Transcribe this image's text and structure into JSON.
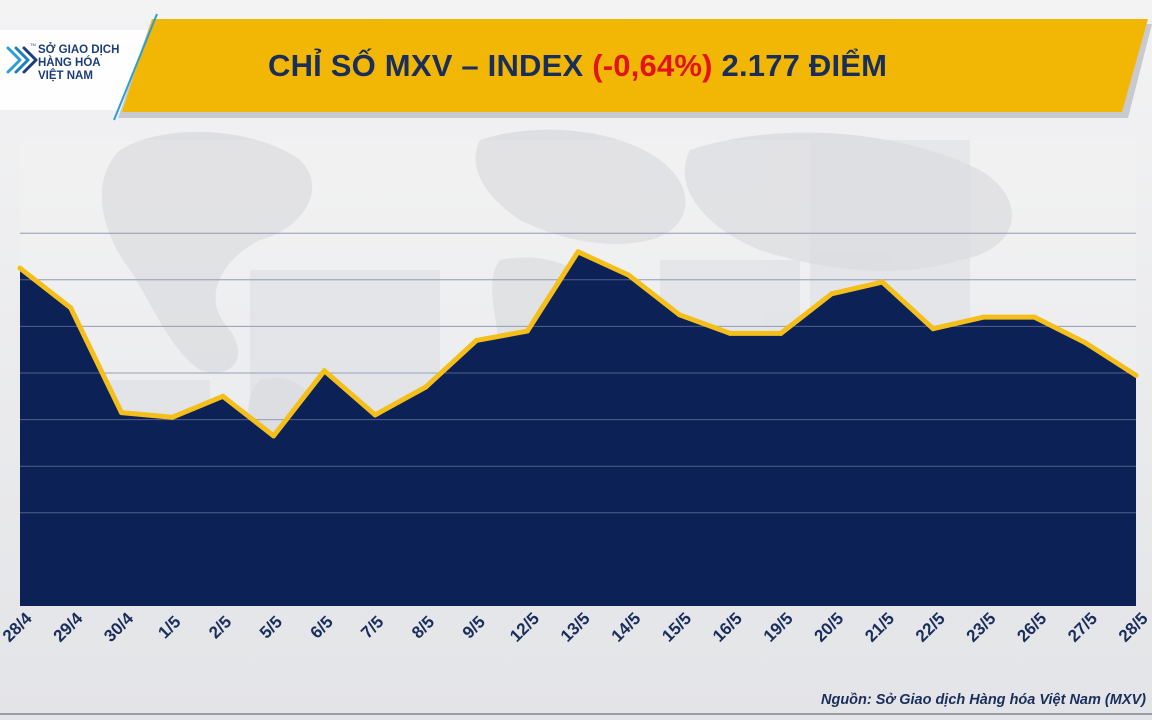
{
  "header": {
    "logo_text": "SỞ GIAO DỊCH\nHÀNG HÓA\nVIỆT NAM",
    "logo_mark": "TM",
    "title_prefix": "CHỈ SỐ MXV – INDEX",
    "title_change": "(-0,64%)",
    "title_suffix": "2.177 ĐIỂM"
  },
  "colors": {
    "banner": "#f2b705",
    "title_text": "#1a2e5c",
    "change_text": "#e3131b",
    "line": "#f5bf1b",
    "area_top": "#a8b1c6",
    "area_bottom": "#0c2257",
    "gridline": "#8a93b0"
  },
  "chart_data": {
    "type": "area",
    "categories": [
      "28/4",
      "29/4",
      "30/4",
      "1/5",
      "2/5",
      "5/5",
      "6/5",
      "7/5",
      "8/5",
      "9/5",
      "12/5",
      "13/5",
      "14/5",
      "15/5",
      "16/5",
      "19/5",
      "20/5",
      "21/5",
      "22/5",
      "23/5",
      "26/5",
      "27/5",
      "28/5"
    ],
    "values": [
      62.5,
      54,
      31.5,
      30.5,
      35,
      26.5,
      40.5,
      31,
      37,
      47,
      49,
      66,
      61,
      52.5,
      48.5,
      48.5,
      57,
      59.5,
      49.5,
      52,
      52,
      46.5,
      39.5
    ],
    "ylim": [
      -10,
      90
    ],
    "gridlines": [
      10,
      20,
      30,
      40,
      50,
      60,
      70
    ],
    "yaxis_labels_shown": false,
    "xlabel": "",
    "ylabel": "",
    "title": "CHỈ SỐ MXV – INDEX (-0,64%) 2.177 ĐIỂM"
  },
  "footer": {
    "source": "Nguồn: Sở Giao dịch Hàng hóa Việt Nam (MXV)"
  }
}
